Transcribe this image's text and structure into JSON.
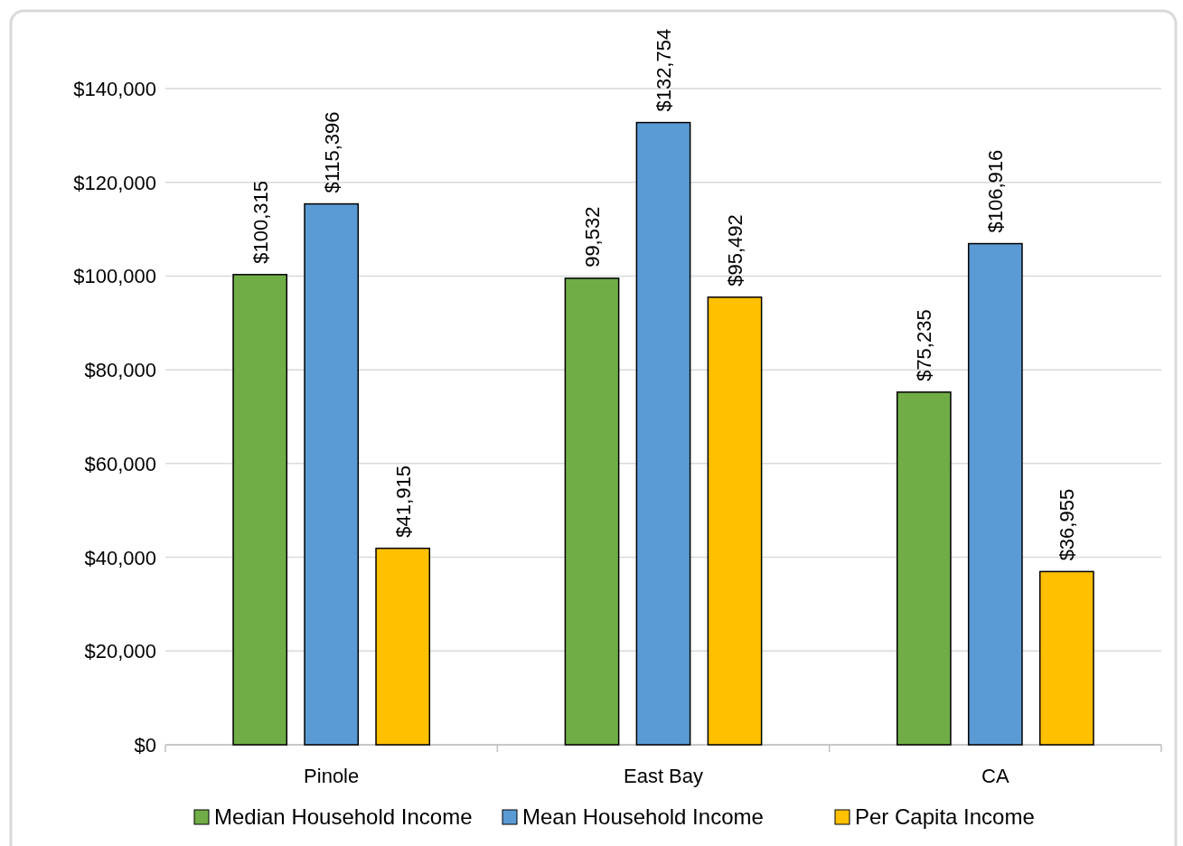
{
  "chart_data": {
    "type": "bar",
    "categories": [
      "Pinole",
      "East Bay",
      "CA"
    ],
    "series": [
      {
        "name": "Median Household Income",
        "color": "#70ad47",
        "values": [
          100315,
          99532,
          75235
        ],
        "value_labels": [
          "$100,315",
          "99,532",
          "$75,235"
        ]
      },
      {
        "name": "Mean Household Income",
        "color": "#5b9bd5",
        "values": [
          115396,
          132754,
          106916
        ],
        "value_labels": [
          "$115,396",
          "$132,754",
          "$106,916"
        ]
      },
      {
        "name": "Per Capita Income",
        "color": "#ffc000",
        "values": [
          41915,
          95492,
          36955
        ],
        "value_labels": [
          "$41,915",
          "$95,492",
          "$36,955"
        ]
      }
    ],
    "ylim": [
      0,
      140000
    ],
    "yticks": [
      {
        "value": 0,
        "label": "$0"
      },
      {
        "value": 20000,
        "label": "$20,000"
      },
      {
        "value": 40000,
        "label": "$40,000"
      },
      {
        "value": 60000,
        "label": "$60,000"
      },
      {
        "value": 80000,
        "label": "$80,000"
      },
      {
        "value": 100000,
        "label": "$100,000"
      },
      {
        "value": 120000,
        "label": "$120,000"
      },
      {
        "value": 140000,
        "label": "$140,000"
      }
    ],
    "grid": "y",
    "legend": "bottom"
  }
}
